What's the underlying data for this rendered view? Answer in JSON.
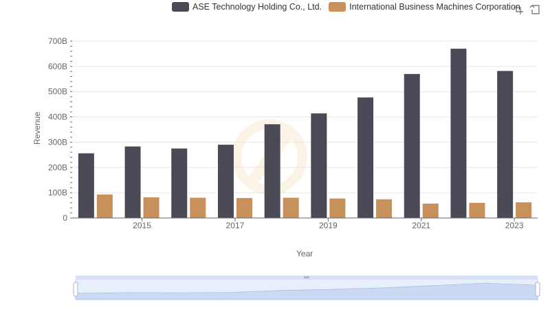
{
  "legend": {
    "items": [
      {
        "label": "ASE Technology Holding Co., Ltd.",
        "color": "#4a4a56"
      },
      {
        "label": "International Business Machines Corporation",
        "color": "#c8915c"
      }
    ]
  },
  "toolbox": {
    "icons": [
      "zoom-select-icon",
      "zoom-reset-icon"
    ]
  },
  "chart_data": {
    "type": "bar",
    "xlabel": "Year",
    "ylabel": "Revenue",
    "ylim": [
      0,
      700
    ],
    "y_tick_labels": [
      "0",
      "100B",
      "200B",
      "300B",
      "400B",
      "500B",
      "600B",
      "700B"
    ],
    "x_tick_labels": [
      "2015",
      "2017",
      "2019",
      "2021",
      "2023"
    ],
    "categories": [
      "2014",
      "2015",
      "2016",
      "2017",
      "2018",
      "2019",
      "2020",
      "2021",
      "2022",
      "2023"
    ],
    "series": [
      {
        "name": "ASE Technology Holding Co., Ltd.",
        "color": "#4a4a56",
        "values": [
          256,
          283,
          275,
          290,
          371,
          414,
          477,
          570,
          670,
          582
        ]
      },
      {
        "name": "International Business Machines Corporation",
        "color": "#c8915c",
        "values": [
          93,
          82,
          80,
          79,
          80,
          77,
          74,
          57,
          60,
          62
        ]
      }
    ],
    "grid": true,
    "legend_position": "top",
    "datazoom": {
      "start": 0,
      "end": 100
    }
  }
}
